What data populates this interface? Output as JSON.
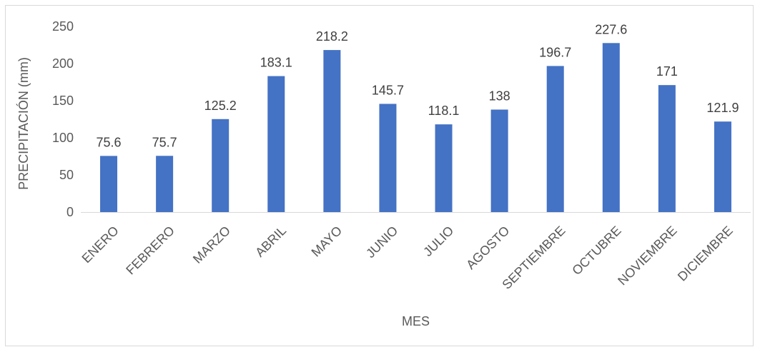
{
  "chart_data": {
    "type": "bar",
    "title": "",
    "xlabel": "MES",
    "ylabel": "PRECIPITACIÓN (mm)",
    "ylim": [
      0,
      250
    ],
    "yticks": [
      0,
      50,
      100,
      150,
      200,
      250
    ],
    "grid": false,
    "legend": "none",
    "bar_color": "#4472c4",
    "categories": [
      "ENERO",
      "FEBRERO",
      "MARZO",
      "ABRIL",
      "MAYO",
      "JUNIO",
      "JULIO",
      "AGOSTO",
      "SEPTIEMBRE",
      "OCTUBRE",
      "NOVIEMBRE",
      "DICIEMBRE"
    ],
    "values": [
      75.6,
      75.7,
      125.2,
      183.1,
      218.2,
      145.7,
      118.1,
      138,
      196.7,
      227.6,
      171,
      121.9
    ],
    "value_labels": [
      "75.6",
      "75.7",
      "125.2",
      "183.1",
      "218.2",
      "145.7",
      "118.1",
      "138",
      "196.7",
      "227.6",
      "171",
      "121.9"
    ]
  }
}
